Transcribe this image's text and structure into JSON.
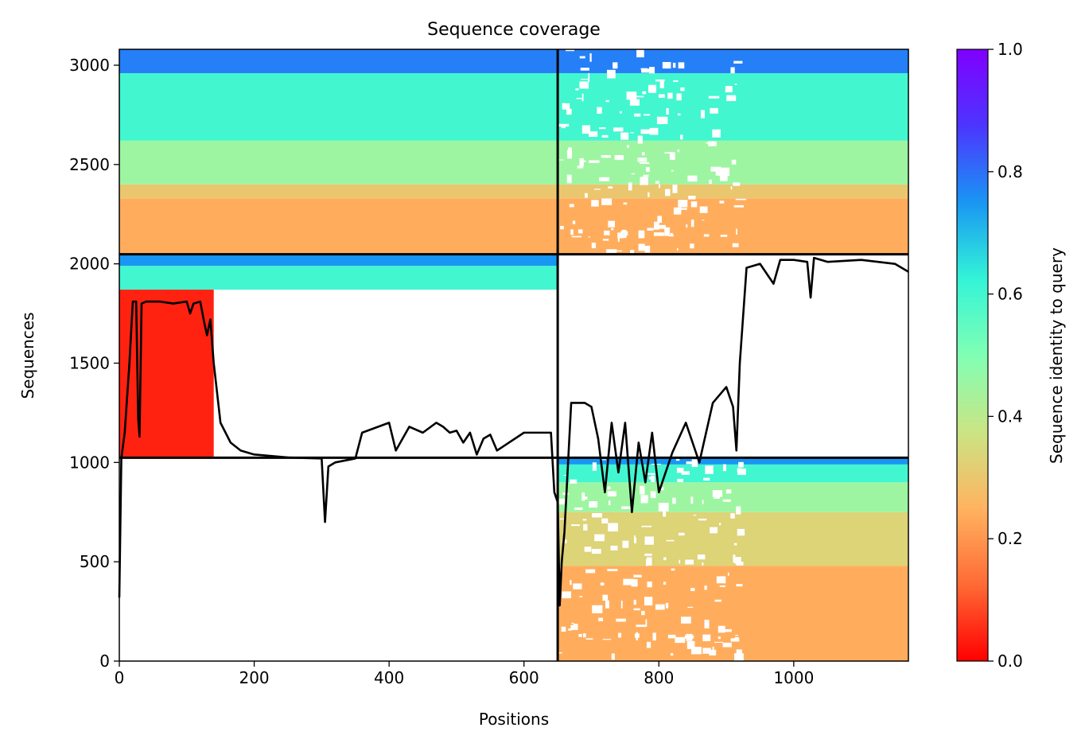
{
  "chart_data": {
    "type": "heatmap",
    "title": "Sequence coverage",
    "xlabel": "Positions",
    "ylabel": "Sequences",
    "xlim": [
      0,
      1170
    ],
    "ylim": [
      0,
      3080
    ],
    "xticks": [
      0,
      200,
      400,
      600,
      800,
      1000
    ],
    "yticks": [
      0,
      500,
      1000,
      1500,
      2000,
      2500,
      3000
    ],
    "grid": false,
    "divider_x": [
      650
    ],
    "divider_y": [
      1024,
      2048
    ],
    "colorbar": {
      "label": "Sequence identity to query",
      "range": [
        0,
        1
      ],
      "ticks": [
        "0.0",
        "0.2",
        "0.4",
        "0.6",
        "0.8",
        "1.0"
      ],
      "colormap": "rainbow_r",
      "stops": [
        "#ff0000",
        "#ff6a35",
        "#ffb360",
        "#cae584",
        "#80ffb4",
        "#33f4d7",
        "#1996f3",
        "#4c35ff",
        "#8000ff"
      ]
    },
    "blocks": [
      {
        "x": [
          0,
          650
        ],
        "y": [
          2048,
          3080
        ],
        "fill": "dense",
        "identity_bands": [
          [
            2048,
            2330,
            0.24
          ],
          [
            2330,
            2400,
            0.3
          ],
          [
            2400,
            2620,
            0.45
          ],
          [
            2620,
            2960,
            0.6
          ],
          [
            2960,
            3080,
            0.78
          ]
        ]
      },
      {
        "x": [
          650,
          1170
        ],
        "y": [
          2048,
          3080
        ],
        "fill": "dense_with_gaps_650_920",
        "identity_bands": [
          [
            2048,
            2330,
            0.24
          ],
          [
            2330,
            2400,
            0.3
          ],
          [
            2400,
            2620,
            0.45
          ],
          [
            2620,
            2960,
            0.6
          ],
          [
            2960,
            3080,
            0.78
          ]
        ]
      },
      {
        "x": [
          0,
          650
        ],
        "y": [
          1870,
          2048
        ],
        "fill": "dense",
        "identity_bands": [
          [
            1870,
            1990,
            0.6
          ],
          [
            1990,
            2048,
            0.75
          ]
        ]
      },
      {
        "x": [
          0,
          140
        ],
        "y": [
          1024,
          1870
        ],
        "fill": "dense",
        "identity_bands": [
          [
            1024,
            1870,
            0.04
          ]
        ]
      },
      {
        "x": [
          650,
          1170
        ],
        "y": [
          0,
          1024
        ],
        "fill": "dense_with_gaps_650_920",
        "identity_bands": [
          [
            0,
            480,
            0.24
          ],
          [
            480,
            750,
            0.33
          ],
          [
            750,
            900,
            0.45
          ],
          [
            900,
            990,
            0.6
          ],
          [
            990,
            1024,
            0.75
          ]
        ]
      }
    ],
    "coverage_line": {
      "x": [
        0,
        3,
        8,
        15,
        20,
        25,
        28,
        30,
        33,
        40,
        60,
        80,
        100,
        105,
        110,
        120,
        125,
        130,
        135,
        140,
        150,
        165,
        180,
        200,
        250,
        300,
        305,
        310,
        320,
        350,
        360,
        400,
        410,
        420,
        430,
        450,
        470,
        480,
        490,
        500,
        510,
        520,
        530,
        540,
        550,
        560,
        600,
        640,
        645,
        650,
        653,
        656,
        660,
        670,
        690,
        700,
        710,
        720,
        730,
        740,
        750,
        760,
        770,
        780,
        790,
        800,
        820,
        840,
        860,
        880,
        900,
        910,
        915,
        920,
        930,
        950,
        970,
        980,
        1000,
        1020,
        1025,
        1030,
        1050,
        1100,
        1150,
        1170
      ],
      "y": [
        320,
        1020,
        1150,
        1500,
        1810,
        1810,
        1220,
        1130,
        1800,
        1810,
        1810,
        1800,
        1810,
        1750,
        1800,
        1810,
        1720,
        1640,
        1720,
        1500,
        1200,
        1100,
        1060,
        1040,
        1025,
        1020,
        700,
        980,
        1000,
        1020,
        1150,
        1200,
        1060,
        1120,
        1180,
        1150,
        1200,
        1180,
        1150,
        1160,
        1100,
        1150,
        1040,
        1120,
        1140,
        1060,
        1150,
        1150,
        850,
        800,
        280,
        500,
        650,
        1300,
        1300,
        1280,
        1120,
        850,
        1200,
        950,
        1200,
        750,
        1100,
        900,
        1150,
        850,
        1050,
        1200,
        1000,
        1300,
        1380,
        1280,
        1060,
        1500,
        1980,
        2000,
        1900,
        2020,
        2020,
        2010,
        1830,
        2030,
        2010,
        2020,
        2000,
        1960
      ]
    }
  }
}
